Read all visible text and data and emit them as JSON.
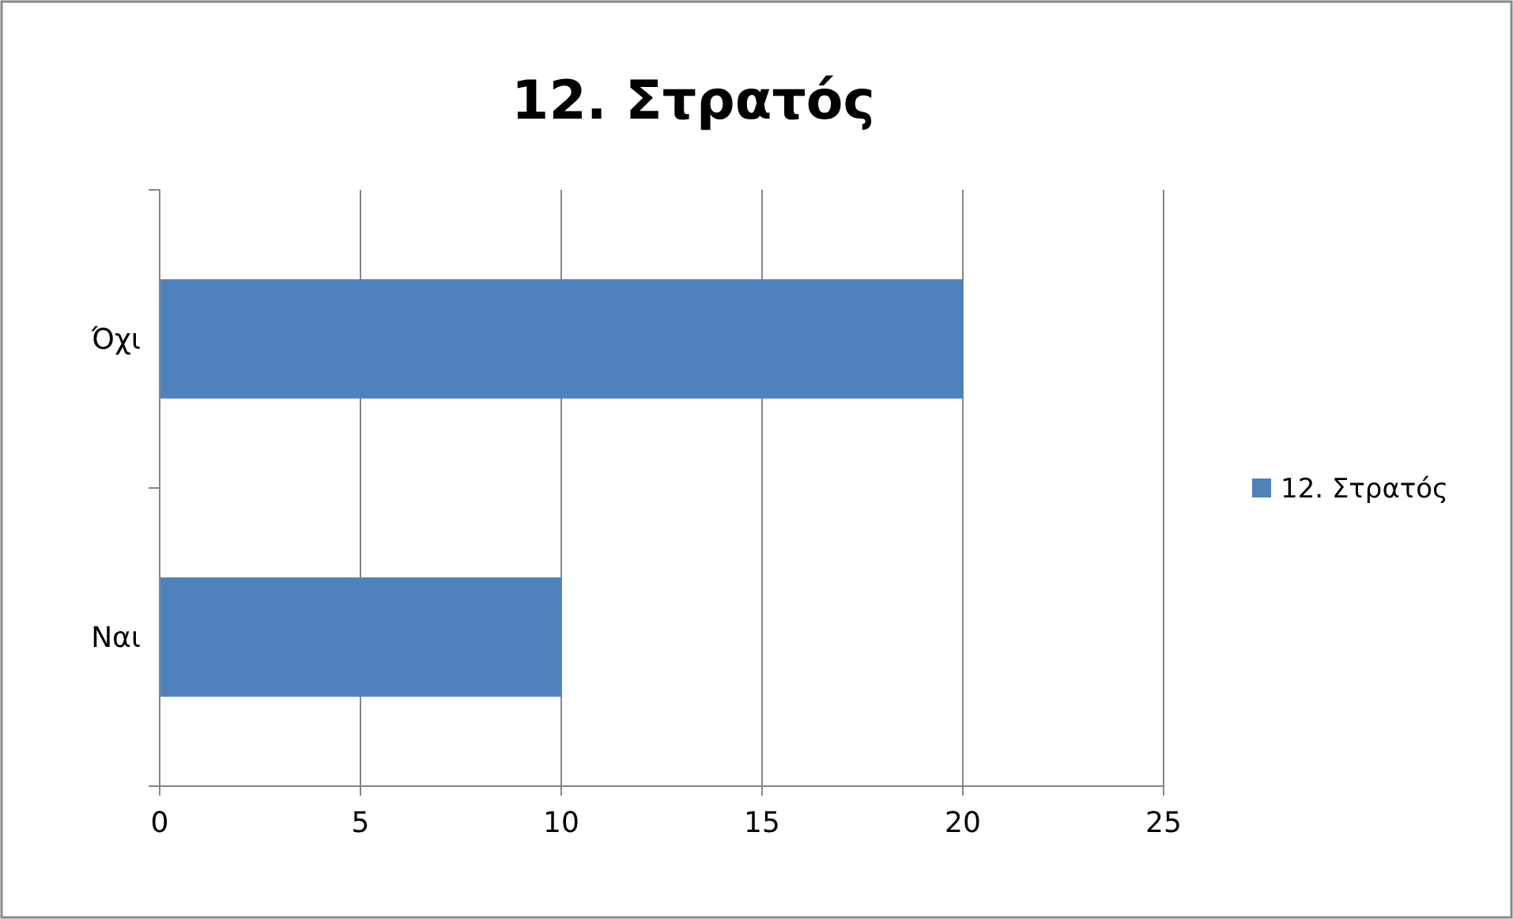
{
  "chart_data": {
    "type": "bar",
    "orientation": "horizontal",
    "title": "12. Στρατός",
    "categories": [
      "Όχι",
      "Ναι"
    ],
    "series": [
      {
        "name": "12. Στρατός",
        "color": "#4f81bd",
        "values": [
          20,
          10
        ]
      }
    ],
    "xlim": [
      0,
      25
    ],
    "xticks": [
      0,
      5,
      10,
      15,
      20,
      25
    ],
    "grid": "x",
    "legend": "right"
  }
}
